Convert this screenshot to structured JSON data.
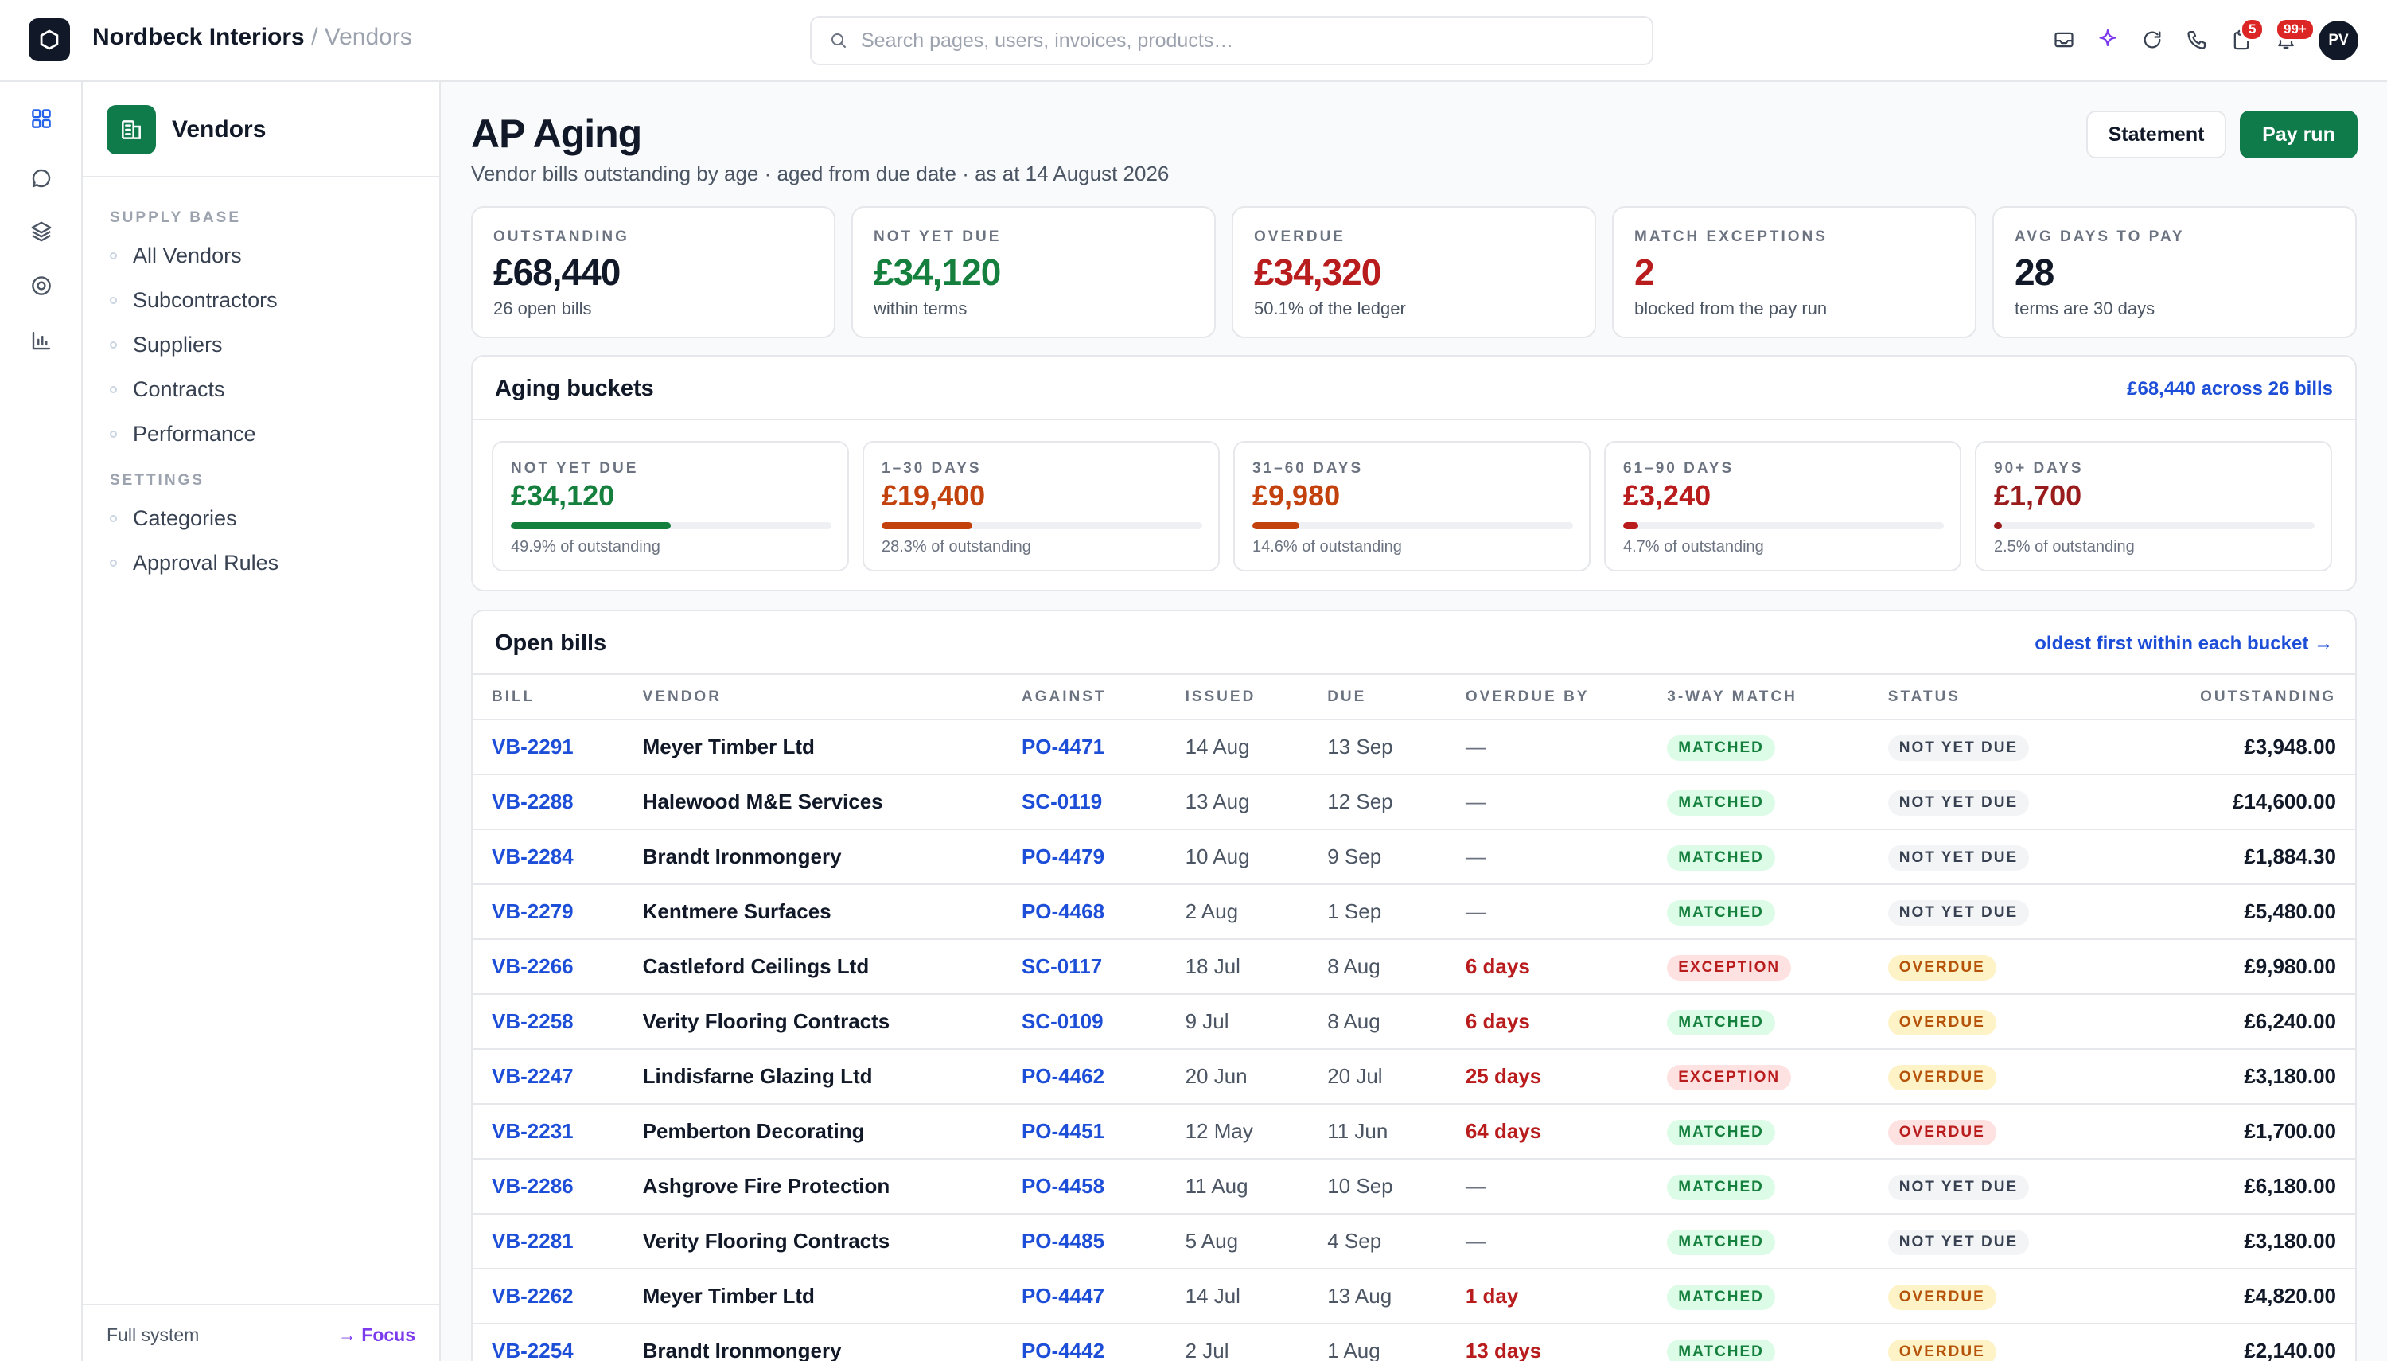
{
  "header": {
    "company": "Nordbeck Interiors",
    "separator": "/",
    "section": "Vendors",
    "search_placeholder": "Search pages, users, invoices, products…",
    "badges": {
      "tasks": "5",
      "notifications": "99+"
    },
    "avatar_initials": "PV"
  },
  "sidebar": {
    "title": "Vendors",
    "sections": [
      {
        "label": "SUPPLY BASE",
        "items": [
          "All Vendors",
          "Subcontractors",
          "Suppliers",
          "Contracts",
          "Performance"
        ]
      },
      {
        "label": "SETTINGS",
        "items": [
          "Categories",
          "Approval Rules"
        ]
      }
    ],
    "footer": {
      "left": "Full system",
      "right": "→ Focus"
    }
  },
  "page": {
    "title": "AP Aging",
    "subtitle": "Vendor bills outstanding by age · aged from due date · as at 14 August 2026",
    "actions": {
      "statement": "Statement",
      "pay_run": "Pay run"
    }
  },
  "kpis": [
    {
      "label": "OUTSTANDING",
      "value": "£68,440",
      "note": "26 open bills",
      "color": "#111827"
    },
    {
      "label": "NOT YET DUE",
      "value": "£34,120",
      "note": "within terms",
      "color": "#15803d"
    },
    {
      "label": "OVERDUE",
      "value": "£34,320",
      "note": "50.1% of the ledger",
      "color": "#b91c1c"
    },
    {
      "label": "MATCH EXCEPTIONS",
      "value": "2",
      "note": "blocked from the pay run",
      "color": "#b91c1c"
    },
    {
      "label": "AVG DAYS TO PAY",
      "value": "28",
      "note": "terms are 30 days",
      "color": "#111827"
    }
  ],
  "aging": {
    "title": "Aging buckets",
    "summary": "£68,440 across 26 bills",
    "buckets": [
      {
        "label": "NOT YET DUE",
        "value": "£34,120",
        "note": "49.9% of outstanding",
        "share": 0.499,
        "color": "#15803d"
      },
      {
        "label": "1–30 DAYS",
        "value": "£19,400",
        "note": "28.3% of outstanding",
        "share": 0.283,
        "color": "#c2410c"
      },
      {
        "label": "31–60 DAYS",
        "value": "£9,980",
        "note": "14.6% of outstanding",
        "share": 0.146,
        "color": "#c2410c"
      },
      {
        "label": "61–90 DAYS",
        "value": "£3,240",
        "note": "4.7% of outstanding",
        "share": 0.047,
        "color": "#b91c1c"
      },
      {
        "label": "90+ DAYS",
        "value": "£1,700",
        "note": "2.5% of outstanding",
        "share": 0.025,
        "color": "#991b1b"
      }
    ]
  },
  "bills": {
    "title": "Open bills",
    "sort_note": "oldest first within each bucket →",
    "columns": [
      "BILL",
      "VENDOR",
      "AGAINST",
      "ISSUED",
      "DUE",
      "OVERDUE BY",
      "3-WAY MATCH",
      "STATUS",
      "OUTSTANDING"
    ],
    "rows": [
      {
        "bill": "VB-2291",
        "vendor": "Meyer Timber Ltd",
        "against": "PO-4471",
        "issued": "14 Aug",
        "due": "13 Sep",
        "overdue_by": "—",
        "match": "MATCHED",
        "status": "NOT YET DUE",
        "amount": "£3,948.00"
      },
      {
        "bill": "VB-2288",
        "vendor": "Halewood M&E Services",
        "against": "SC-0119",
        "issued": "13 Aug",
        "due": "12 Sep",
        "overdue_by": "—",
        "match": "MATCHED",
        "status": "NOT YET DUE",
        "amount": "£14,600.00"
      },
      {
        "bill": "VB-2284",
        "vendor": "Brandt Ironmongery",
        "against": "PO-4479",
        "issued": "10 Aug",
        "due": "9 Sep",
        "overdue_by": "—",
        "match": "MATCHED",
        "status": "NOT YET DUE",
        "amount": "£1,884.30"
      },
      {
        "bill": "VB-2279",
        "vendor": "Kentmere Surfaces",
        "against": "PO-4468",
        "issued": "2 Aug",
        "due": "1 Sep",
        "overdue_by": "—",
        "match": "MATCHED",
        "status": "NOT YET DUE",
        "amount": "£5,480.00"
      },
      {
        "bill": "VB-2266",
        "vendor": "Castleford Ceilings Ltd",
        "against": "SC-0117",
        "issued": "18 Jul",
        "due": "8 Aug",
        "overdue_by": "6 days",
        "match": "EXCEPTION",
        "status": "OVERDUE",
        "amount": "£9,980.00"
      },
      {
        "bill": "VB-2258",
        "vendor": "Verity Flooring Contracts",
        "against": "SC-0109",
        "issued": "9 Jul",
        "due": "8 Aug",
        "overdue_by": "6 days",
        "match": "MATCHED",
        "status": "OVERDUE",
        "amount": "£6,240.00"
      },
      {
        "bill": "VB-2247",
        "vendor": "Lindisfarne Glazing Ltd",
        "against": "PO-4462",
        "issued": "20 Jun",
        "due": "20 Jul",
        "overdue_by": "25 days",
        "match": "EXCEPTION",
        "status": "OVERDUE",
        "amount": "£3,180.00"
      },
      {
        "bill": "VB-2231",
        "vendor": "Pemberton Decorating",
        "against": "PO-4451",
        "issued": "12 May",
        "due": "11 Jun",
        "overdue_by": "64 days",
        "match": "MATCHED",
        "status": "OVERDUE",
        "amount": "£1,700.00"
      },
      {
        "bill": "VB-2286",
        "vendor": "Ashgrove Fire Protection",
        "against": "PO-4458",
        "issued": "11 Aug",
        "due": "10 Sep",
        "overdue_by": "—",
        "match": "MATCHED",
        "status": "NOT YET DUE",
        "amount": "£6,180.00"
      },
      {
        "bill": "VB-2281",
        "vendor": "Verity Flooring Contracts",
        "against": "PO-4485",
        "issued": "5 Aug",
        "due": "4 Sep",
        "overdue_by": "—",
        "match": "MATCHED",
        "status": "NOT YET DUE",
        "amount": "£3,180.00"
      },
      {
        "bill": "VB-2262",
        "vendor": "Meyer Timber Ltd",
        "against": "PO-4447",
        "issued": "14 Jul",
        "due": "13 Aug",
        "overdue_by": "1 day",
        "match": "MATCHED",
        "status": "OVERDUE",
        "amount": "£4,820.00"
      },
      {
        "bill": "VB-2254",
        "vendor": "Brandt Ironmongery",
        "against": "PO-4442",
        "issued": "2 Jul",
        "due": "1 Aug",
        "overdue_by": "13 days",
        "match": "MATCHED",
        "status": "OVERDUE",
        "amount": "£2,140.00"
      }
    ]
  },
  "icons": {
    "rail": [
      "grid-icon",
      "chat-icon",
      "layers-icon",
      "target-icon",
      "chart-icon"
    ],
    "top": [
      "inbox-icon",
      "sparkle-icon",
      "refresh-icon",
      "phone-icon",
      "clipboard-icon",
      "bell-icon"
    ]
  }
}
